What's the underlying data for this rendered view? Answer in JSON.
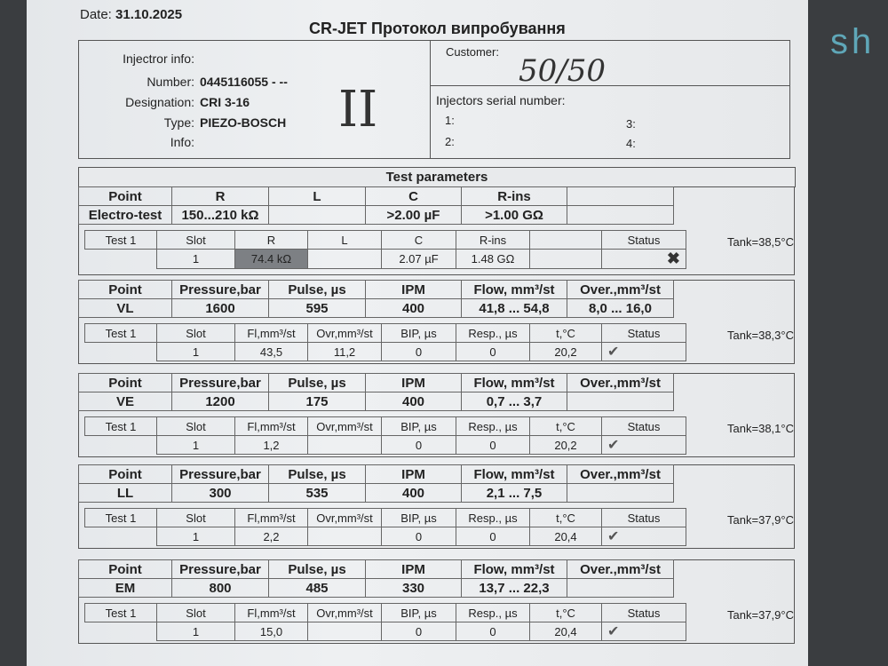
{
  "header": {
    "date_label": "Date:",
    "date": "31.10.2025",
    "title": "CR-JET Протокол випробування"
  },
  "injector": {
    "heading": "Injectror info:",
    "number_label": "Number:",
    "number": "0445116055 - --",
    "designation_label": "Designation:",
    "designation": "CRI 3-16",
    "type_label": "Type:",
    "type": "PIEZO-BOSCH",
    "info_label": "Info:",
    "handwritten_mark": "II"
  },
  "customer": {
    "label": "Customer:",
    "handwritten": "50/50",
    "serial_label": "Injectors serial number:",
    "serials": [
      "1:",
      "2:",
      "3:",
      "4:"
    ]
  },
  "test_parameters_title": "Test parameters",
  "blocks": [
    {
      "top_headers": [
        "Point",
        "R",
        "L",
        "C",
        "R-ins",
        ""
      ],
      "top_values": [
        "Electro-test",
        "150...210 kΩ",
        "",
        ">2.00 µF",
        ">1.00 GΩ",
        ""
      ],
      "sub_headers": [
        "Test 1",
        "Slot",
        "R",
        "L",
        "C",
        "R-ins",
        "",
        "Status"
      ],
      "sub_values": [
        "",
        "1",
        "74.4 kΩ",
        "",
        "2.07 µF",
        "1.48 GΩ",
        "",
        ""
      ],
      "status": "fail",
      "tank": "Tank=38,5°C"
    },
    {
      "top_headers": [
        "Point",
        "Pressure,bar",
        "Pulse, µs",
        "IPM",
        "Flow, mm³/st",
        "Over.,mm³/st"
      ],
      "top_values": [
        "VL",
        "1600",
        "595",
        "400",
        "41,8 ... 54,8",
        "8,0 ... 16,0"
      ],
      "sub_headers": [
        "Test 1",
        "Slot",
        "Fl,mm³/st",
        "Ovr,mm³/st",
        "BIP, µs",
        "Resp., µs",
        "t,°C",
        "Status"
      ],
      "sub_values": [
        "",
        "1",
        "43,5",
        "11,2",
        "0",
        "0",
        "20,2",
        ""
      ],
      "status": "pass",
      "tank": "Tank=38,3°C"
    },
    {
      "top_headers": [
        "Point",
        "Pressure,bar",
        "Pulse, µs",
        "IPM",
        "Flow, mm³/st",
        "Over.,mm³/st"
      ],
      "top_values": [
        "VE",
        "1200",
        "175",
        "400",
        "0,7 ... 3,7",
        ""
      ],
      "sub_headers": [
        "Test 1",
        "Slot",
        "Fl,mm³/st",
        "Ovr,mm³/st",
        "BIP, µs",
        "Resp., µs",
        "t,°C",
        "Status"
      ],
      "sub_values": [
        "",
        "1",
        "1,2",
        "",
        "0",
        "0",
        "20,2",
        ""
      ],
      "status": "pass",
      "tank": "Tank=38,1°C"
    },
    {
      "top_headers": [
        "Point",
        "Pressure,bar",
        "Pulse, µs",
        "IPM",
        "Flow, mm³/st",
        "Over.,mm³/st"
      ],
      "top_values": [
        "LL",
        "300",
        "535",
        "400",
        "2,1 ... 7,5",
        ""
      ],
      "sub_headers": [
        "Test 1",
        "Slot",
        "Fl,mm³/st",
        "Ovr,mm³/st",
        "BIP, µs",
        "Resp., µs",
        "t,°C",
        "Status"
      ],
      "sub_values": [
        "",
        "1",
        "2,2",
        "",
        "0",
        "0",
        "20,4",
        ""
      ],
      "status": "pass",
      "tank": "Tank=37,9°C"
    },
    {
      "top_headers": [
        "Point",
        "Pressure,bar",
        "Pulse, µs",
        "IPM",
        "Flow, mm³/st",
        "Over.,mm³/st"
      ],
      "top_values": [
        "EM",
        "800",
        "485",
        "330",
        "13,7 ... 22,3",
        ""
      ],
      "sub_headers": [
        "Test 1",
        "Slot",
        "Fl,mm³/st",
        "Ovr,mm³/st",
        "BIP, µs",
        "Resp., µs",
        "t,°C",
        "Status"
      ],
      "sub_values": [
        "",
        "1",
        "15,0",
        "",
        "0",
        "0",
        "20,4",
        ""
      ],
      "status": "pass",
      "tank": "Tank=37,9°C"
    }
  ],
  "background_text": "sh"
}
